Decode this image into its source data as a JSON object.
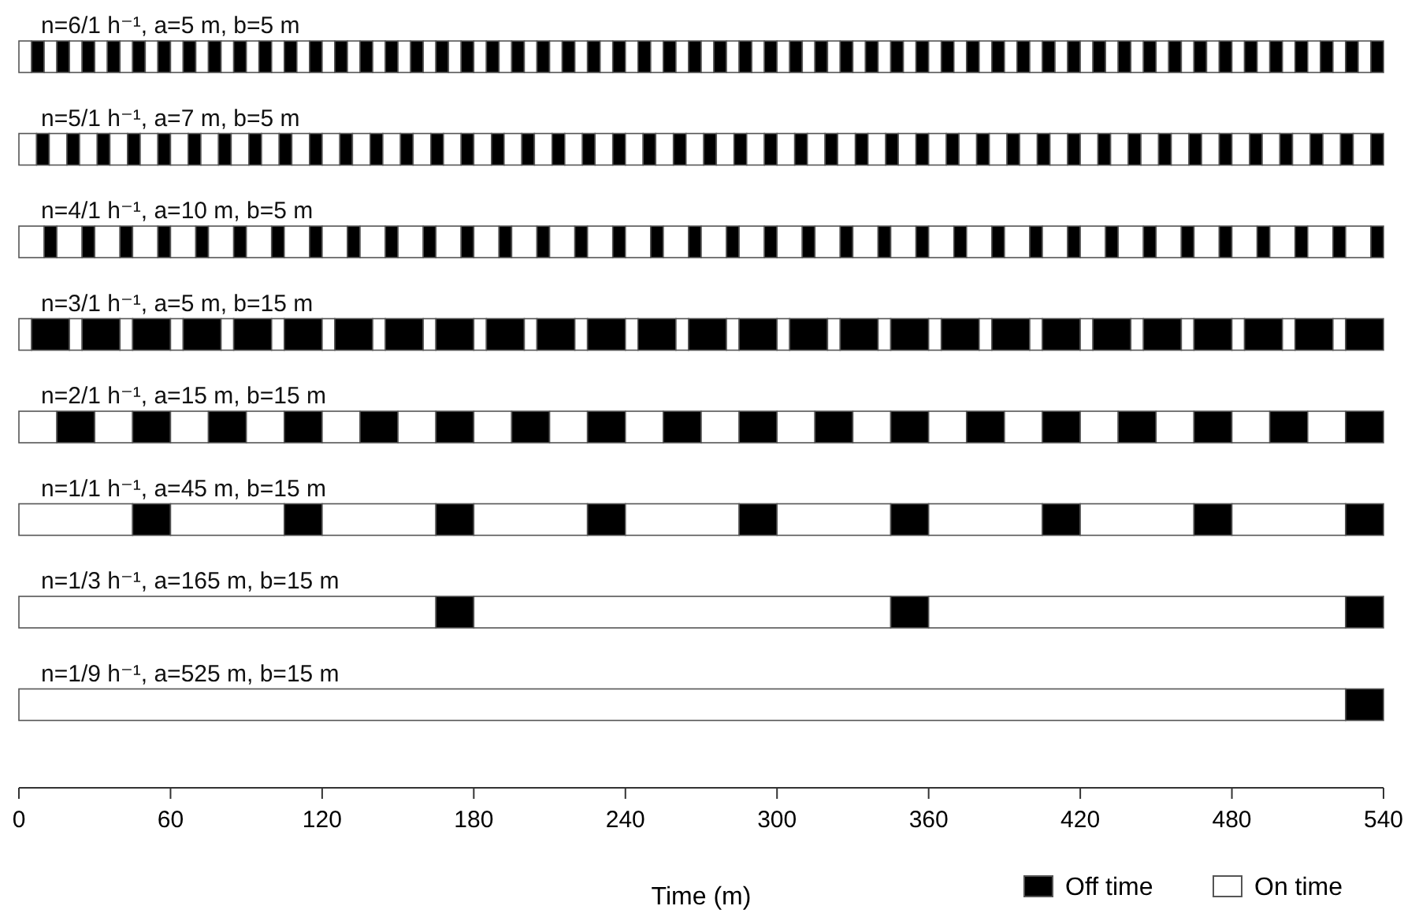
{
  "chart_data": {
    "type": "bar",
    "orientation": "horizontal",
    "stacked": true,
    "xlabel": "Time (m)",
    "xlim": [
      0,
      540
    ],
    "xticks": [
      0,
      60,
      120,
      180,
      240,
      300,
      360,
      420,
      480,
      540
    ],
    "legend": "bottom right",
    "categories": [
      "n=6/1 h⁻¹, a=5 m, b=5 m",
      "n=5/1 h⁻¹, a=7 m, b=5 m",
      "n=4/1 h⁻¹, a=10 m, b=5 m",
      "n=3/1 h⁻¹, a=5 m, b=15 m",
      "n=2/1 h⁻¹, a=15 m, b=15 m",
      "n=1/1 h⁻¹, a=45 m, b=15 m",
      "n=1/3 h⁻¹, a=165 m, b=15 m",
      "n=1/9 h⁻¹, a=525 m, b=15 m"
    ],
    "series": [
      {
        "name": "On time",
        "color": "#ffffff",
        "values": [
          5,
          7,
          10,
          5,
          15,
          45,
          165,
          525
        ]
      },
      {
        "name": "Off time",
        "color": "#000000",
        "values": [
          5,
          5,
          5,
          15,
          15,
          15,
          15,
          15
        ]
      },
      {
        "color": "#ffffff",
        "values": [
          5,
          7,
          10,
          5,
          15,
          45,
          165,
          null
        ]
      },
      {
        "color": "#000000",
        "values": [
          5,
          5,
          5,
          15,
          15,
          15,
          15,
          null
        ]
      },
      {
        "color": "#ffffff",
        "values": [
          5,
          7,
          10,
          5,
          15,
          45,
          165,
          null
        ]
      },
      {
        "color": "#000000",
        "values": [
          5,
          5,
          5,
          15,
          15,
          15,
          15,
          null
        ]
      },
      {
        "color": "#ffffff",
        "values": [
          5,
          7,
          10,
          5,
          15,
          45,
          null,
          null
        ]
      },
      {
        "color": "#000000",
        "values": [
          5,
          5,
          5,
          15,
          15,
          15,
          null,
          null
        ]
      },
      {
        "color": "#ffffff",
        "values": [
          5,
          7,
          10,
          5,
          15,
          45,
          null,
          null
        ]
      },
      {
        "color": "#000000",
        "values": [
          5,
          5,
          5,
          15,
          15,
          15,
          null,
          null
        ]
      },
      {
        "color": "#ffffff",
        "values": [
          5,
          7,
          10,
          5,
          15,
          45,
          null,
          null
        ]
      },
      {
        "color": "#000000",
        "values": [
          5,
          5,
          5,
          15,
          15,
          15,
          null,
          null
        ]
      },
      {
        "color": "#ffffff",
        "values": [
          5,
          7,
          10,
          5,
          15,
          45,
          null,
          null
        ]
      },
      {
        "color": "#000000",
        "values": [
          5,
          5,
          5,
          15,
          15,
          15,
          null,
          null
        ]
      },
      {
        "color": "#ffffff",
        "values": [
          5,
          7,
          10,
          5,
          15,
          45,
          null,
          null
        ]
      },
      {
        "color": "#000000",
        "values": [
          5,
          5,
          5,
          15,
          15,
          15,
          null,
          null
        ]
      },
      {
        "color": "#ffffff",
        "values": [
          5,
          7,
          10,
          5,
          15,
          45,
          null,
          null
        ]
      },
      {
        "color": "#000000",
        "values": [
          5,
          5,
          5,
          15,
          15,
          15,
          null,
          null
        ]
      },
      {
        "color": "#ffffff",
        "values": [
          5,
          7,
          10,
          5,
          15,
          null,
          null,
          null
        ]
      },
      {
        "color": "#000000",
        "values": [
          5,
          5,
          5,
          15,
          15,
          null,
          null,
          null
        ]
      },
      {
        "color": "#ffffff",
        "values": [
          5,
          7,
          10,
          5,
          15,
          null,
          null,
          null
        ]
      },
      {
        "color": "#000000",
        "values": [
          5,
          5,
          5,
          15,
          15,
          null,
          null,
          null
        ]
      },
      {
        "color": "#ffffff",
        "values": [
          5,
          7,
          10,
          5,
          15,
          null,
          null,
          null
        ]
      },
      {
        "color": "#000000",
        "values": [
          5,
          5,
          5,
          15,
          15,
          null,
          null,
          null
        ]
      },
      {
        "color": "#ffffff",
        "values": [
          5,
          7,
          10,
          5,
          15,
          null,
          null,
          null
        ]
      },
      {
        "color": "#000000",
        "values": [
          5,
          5,
          5,
          15,
          15,
          null,
          null,
          null
        ]
      },
      {
        "color": "#ffffff",
        "values": [
          5,
          7,
          10,
          5,
          15,
          null,
          null,
          null
        ]
      },
      {
        "color": "#000000",
        "values": [
          5,
          5,
          5,
          15,
          15,
          null,
          null,
          null
        ]
      },
      {
        "color": "#ffffff",
        "values": [
          5,
          7,
          10,
          5,
          15,
          null,
          null,
          null
        ]
      },
      {
        "color": "#000000",
        "values": [
          5,
          5,
          5,
          15,
          15,
          null,
          null,
          null
        ]
      },
      {
        "color": "#ffffff",
        "values": [
          5,
          7,
          10,
          5,
          15,
          null,
          null,
          null
        ]
      },
      {
        "color": "#000000",
        "values": [
          5,
          5,
          5,
          15,
          15,
          null,
          null,
          null
        ]
      },
      {
        "color": "#ffffff",
        "values": [
          5,
          7,
          10,
          5,
          15,
          null,
          null,
          null
        ]
      },
      {
        "color": "#000000",
        "values": [
          5,
          5,
          5,
          15,
          15,
          null,
          null,
          null
        ]
      },
      {
        "color": "#ffffff",
        "values": [
          5,
          7,
          10,
          5,
          15,
          null,
          null,
          null
        ]
      },
      {
        "color": "#000000",
        "values": [
          5,
          5,
          5,
          15,
          15,
          null,
          null,
          null
        ]
      },
      {
        "color": "#ffffff",
        "values": [
          5,
          7,
          10,
          5,
          null,
          null,
          null,
          null
        ]
      },
      {
        "color": "#000000",
        "values": [
          5,
          5,
          5,
          15,
          null,
          null,
          null,
          null
        ]
      },
      {
        "color": "#ffffff",
        "values": [
          5,
          7,
          10,
          5,
          null,
          null,
          null,
          null
        ]
      },
      {
        "color": "#000000",
        "values": [
          5,
          5,
          5,
          15,
          null,
          null,
          null,
          null
        ]
      },
      {
        "color": "#ffffff",
        "values": [
          5,
          7,
          10,
          5,
          null,
          null,
          null,
          null
        ]
      },
      {
        "color": "#000000",
        "values": [
          5,
          5,
          5,
          15,
          null,
          null,
          null,
          null
        ]
      },
      {
        "color": "#ffffff",
        "values": [
          5,
          7,
          10,
          5,
          null,
          null,
          null,
          null
        ]
      },
      {
        "color": "#000000",
        "values": [
          5,
          5,
          5,
          15,
          null,
          null,
          null,
          null
        ]
      },
      {
        "color": "#ffffff",
        "values": [
          5,
          7,
          10,
          5,
          null,
          null,
          null,
          null
        ]
      },
      {
        "color": "#000000",
        "values": [
          5,
          5,
          5,
          15,
          null,
          null,
          null,
          null
        ]
      },
      {
        "color": "#ffffff",
        "values": [
          5,
          7,
          10,
          5,
          null,
          null,
          null,
          null
        ]
      },
      {
        "color": "#000000",
        "values": [
          5,
          5,
          5,
          15,
          null,
          null,
          null,
          null
        ]
      },
      {
        "color": "#ffffff",
        "values": [
          5,
          7,
          10,
          5,
          null,
          null,
          null,
          null
        ]
      },
      {
        "color": "#000000",
        "values": [
          5,
          5,
          5,
          15,
          null,
          null,
          null,
          null
        ]
      },
      {
        "color": "#ffffff",
        "values": [
          5,
          7,
          10,
          5,
          null,
          null,
          null,
          null
        ]
      },
      {
        "color": "#000000",
        "values": [
          5,
          5,
          5,
          15,
          null,
          null,
          null,
          null
        ]
      },
      {
        "color": "#ffffff",
        "values": [
          5,
          7,
          10,
          5,
          null,
          null,
          null,
          null
        ]
      },
      {
        "color": "#000000",
        "values": [
          5,
          5,
          5,
          15,
          null,
          null,
          null,
          null
        ]
      },
      {
        "color": "#ffffff",
        "values": [
          5,
          7,
          10,
          null,
          null,
          null,
          null,
          null
        ]
      },
      {
        "color": "#000000",
        "values": [
          5,
          5,
          5,
          null,
          null,
          null,
          null,
          null
        ]
      },
      {
        "color": "#ffffff",
        "values": [
          5,
          7,
          10,
          null,
          null,
          null,
          null,
          null
        ]
      },
      {
        "color": "#000000",
        "values": [
          5,
          5,
          5,
          null,
          null,
          null,
          null,
          null
        ]
      },
      {
        "color": "#ffffff",
        "values": [
          5,
          7,
          10,
          null,
          null,
          null,
          null,
          null
        ]
      },
      {
        "color": "#000000",
        "values": [
          5,
          5,
          5,
          null,
          null,
          null,
          null,
          null
        ]
      },
      {
        "color": "#ffffff",
        "values": [
          5,
          7,
          10,
          null,
          null,
          null,
          null,
          null
        ]
      },
      {
        "color": "#000000",
        "values": [
          5,
          5,
          5,
          null,
          null,
          null,
          null,
          null
        ]
      },
      {
        "color": "#ffffff",
        "values": [
          5,
          7,
          10,
          null,
          null,
          null,
          null,
          null
        ]
      },
      {
        "color": "#000000",
        "values": [
          5,
          5,
          5,
          null,
          null,
          null,
          null,
          null
        ]
      },
      {
        "color": "#ffffff",
        "values": [
          5,
          7,
          10,
          null,
          null,
          null,
          null,
          null
        ]
      },
      {
        "color": "#000000",
        "values": [
          5,
          5,
          5,
          null,
          null,
          null,
          null,
          null
        ]
      },
      {
        "color": "#ffffff",
        "values": [
          5,
          7,
          10,
          null,
          null,
          null,
          null,
          null
        ]
      },
      {
        "color": "#000000",
        "values": [
          5,
          5,
          5,
          null,
          null,
          null,
          null,
          null
        ]
      },
      {
        "color": "#ffffff",
        "values": [
          5,
          7,
          10,
          null,
          null,
          null,
          null,
          null
        ]
      },
      {
        "color": "#000000",
        "values": [
          5,
          5,
          5,
          null,
          null,
          null,
          null,
          null
        ]
      },
      {
        "color": "#ffffff",
        "values": [
          5,
          7,
          10,
          null,
          null,
          null,
          null,
          null
        ]
      },
      {
        "color": "#000000",
        "values": [
          5,
          5,
          5,
          null,
          null,
          null,
          null,
          null
        ]
      },
      {
        "color": "#ffffff",
        "values": [
          5,
          7,
          null,
          null,
          null,
          null,
          null,
          null
        ]
      },
      {
        "color": "#000000",
        "values": [
          5,
          5,
          null,
          null,
          null,
          null,
          null,
          null
        ]
      },
      {
        "color": "#ffffff",
        "values": [
          5,
          7,
          null,
          null,
          null,
          null,
          null,
          null
        ]
      },
      {
        "color": "#000000",
        "values": [
          5,
          5,
          null,
          null,
          null,
          null,
          null,
          null
        ]
      },
      {
        "color": "#ffffff",
        "values": [
          5,
          7,
          null,
          null,
          null,
          null,
          null,
          null
        ]
      },
      {
        "color": "#000000",
        "values": [
          5,
          5,
          null,
          null,
          null,
          null,
          null,
          null
        ]
      },
      {
        "color": "#ffffff",
        "values": [
          5,
          7,
          null,
          null,
          null,
          null,
          null,
          null
        ]
      },
      {
        "color": "#000000",
        "values": [
          5,
          5,
          null,
          null,
          null,
          null,
          null,
          null
        ]
      },
      {
        "color": "#ffffff",
        "values": [
          5,
          7,
          null,
          null,
          null,
          null,
          null,
          null
        ]
      },
      {
        "color": "#000000",
        "values": [
          5,
          5,
          null,
          null,
          null,
          null,
          null,
          null
        ]
      },
      {
        "color": "#ffffff",
        "values": [
          5,
          7,
          null,
          null,
          null,
          null,
          null,
          null
        ]
      },
      {
        "color": "#000000",
        "values": [
          5,
          5,
          null,
          null,
          null,
          null,
          null,
          null
        ]
      },
      {
        "color": "#ffffff",
        "values": [
          5,
          7,
          null,
          null,
          null,
          null,
          null,
          null
        ]
      },
      {
        "color": "#000000",
        "values": [
          5,
          5,
          null,
          null,
          null,
          null,
          null,
          null
        ]
      },
      {
        "color": "#ffffff",
        "values": [
          5,
          7,
          null,
          null,
          null,
          null,
          null,
          null
        ]
      },
      {
        "color": "#000000",
        "values": [
          5,
          5,
          null,
          null,
          null,
          null,
          null,
          null
        ]
      },
      {
        "color": "#ffffff",
        "values": [
          5,
          7,
          null,
          null,
          null,
          null,
          null,
          null
        ]
      },
      {
        "color": "#000000",
        "values": [
          5,
          5,
          null,
          null,
          null,
          null,
          null,
          null
        ]
      },
      {
        "color": "#ffffff",
        "values": [
          5,
          null,
          null,
          null,
          null,
          null,
          null,
          null
        ]
      },
      {
        "color": "#000000",
        "values": [
          5,
          null,
          null,
          null,
          null,
          null,
          null,
          null
        ]
      },
      {
        "color": "#ffffff",
        "values": [
          5,
          null,
          null,
          null,
          null,
          null,
          null,
          null
        ]
      },
      {
        "color": "#000000",
        "values": [
          5,
          null,
          null,
          null,
          null,
          null,
          null,
          null
        ]
      },
      {
        "color": "#ffffff",
        "values": [
          5,
          null,
          null,
          null,
          null,
          null,
          null,
          null
        ]
      },
      {
        "color": "#000000",
        "values": [
          5,
          null,
          null,
          null,
          null,
          null,
          null,
          null
        ]
      },
      {
        "color": "#ffffff",
        "values": [
          5,
          null,
          null,
          null,
          null,
          null,
          null,
          null
        ]
      },
      {
        "color": "#000000",
        "values": [
          5,
          null,
          null,
          null,
          null,
          null,
          null,
          null
        ]
      },
      {
        "color": "#ffffff",
        "values": [
          5,
          null,
          null,
          null,
          null,
          null,
          null,
          null
        ]
      },
      {
        "color": "#000000",
        "values": [
          5,
          null,
          null,
          null,
          null,
          null,
          null,
          null
        ]
      },
      {
        "color": "#ffffff",
        "values": [
          5,
          null,
          null,
          null,
          null,
          null,
          null,
          null
        ]
      },
      {
        "color": "#000000",
        "values": [
          5,
          null,
          null,
          null,
          null,
          null,
          null,
          null
        ]
      },
      {
        "color": "#ffffff",
        "values": [
          5,
          null,
          null,
          null,
          null,
          null,
          null,
          null
        ]
      },
      {
        "color": "#000000",
        "values": [
          5,
          null,
          null,
          null,
          null,
          null,
          null,
          null
        ]
      },
      {
        "color": "#ffffff",
        "values": [
          5,
          null,
          null,
          null,
          null,
          null,
          null,
          null
        ]
      },
      {
        "color": "#000000",
        "values": [
          5,
          null,
          null,
          null,
          null,
          null,
          null,
          null
        ]
      },
      {
        "color": "#ffffff",
        "values": [
          5,
          null,
          null,
          null,
          null,
          null,
          null,
          null
        ]
      },
      {
        "color": "#000000",
        "values": [
          5,
          null,
          null,
          null,
          null,
          null,
          null,
          null
        ]
      }
    ]
  }
}
